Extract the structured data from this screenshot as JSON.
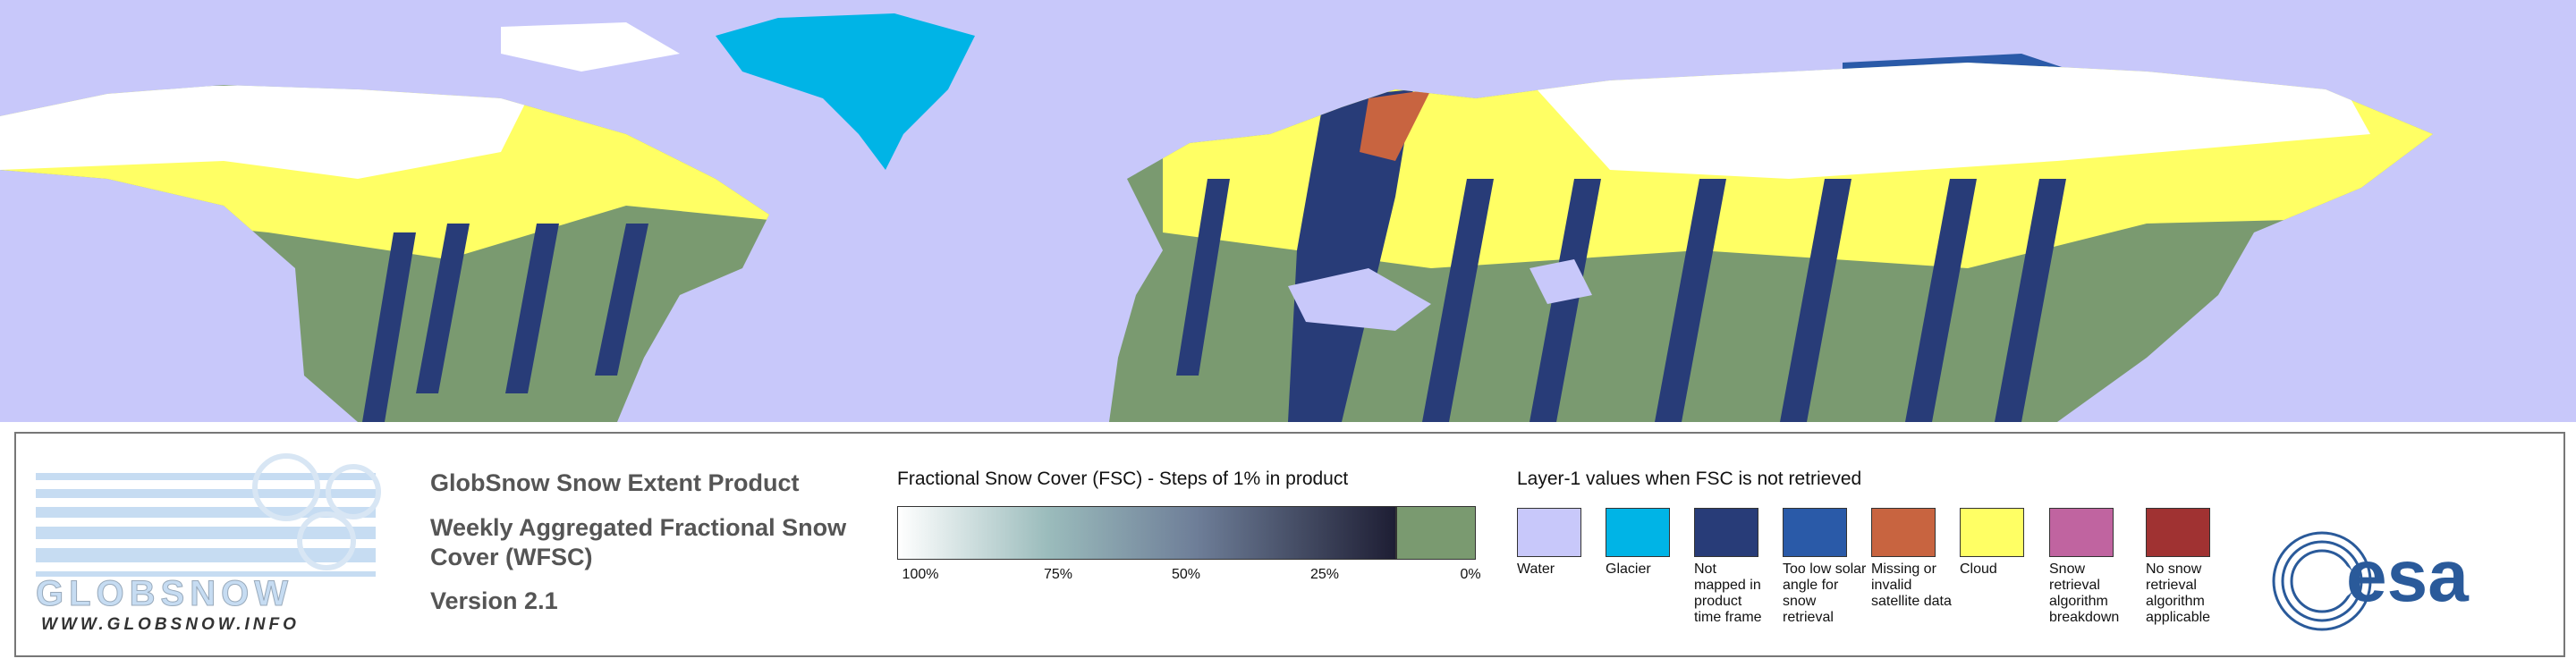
{
  "product": {
    "title": "GlobSnow Snow Extent Product",
    "subtitle": "Weekly Aggregated Fractional Snow Cover (WFSC)",
    "version": "Version 2.1"
  },
  "logo": {
    "name": "GLOBSNOW",
    "url": "WWW.GLOBSNOW.INFO",
    "agency": "esa"
  },
  "fsc_legend": {
    "title": "Fractional Snow Cover (FSC) - Steps of 1% in product",
    "ticks": [
      "100%",
      "75%",
      "50%",
      "25%",
      "0%"
    ]
  },
  "layer1_legend": {
    "title": "Layer-1 values when FSC is not retrieved",
    "items": [
      {
        "label": "Water",
        "color": "#c8c8fa"
      },
      {
        "label": "Glacier",
        "color": "#00b4e6"
      },
      {
        "label": "Not mapped in product time frame",
        "color": "#283c78"
      },
      {
        "label": "Too low solar angle for snow retrieval",
        "color": "#2a5aa8"
      },
      {
        "label": "Missing or invalid satellite data",
        "color": "#c86440"
      },
      {
        "label": "Cloud",
        "color": "#ffff64"
      },
      {
        "label": "Snow retrieval algorithm breakdown",
        "color": "#c064a0"
      },
      {
        "label": "No snow retrieval algorithm applicable",
        "color": "#a03232"
      }
    ]
  }
}
